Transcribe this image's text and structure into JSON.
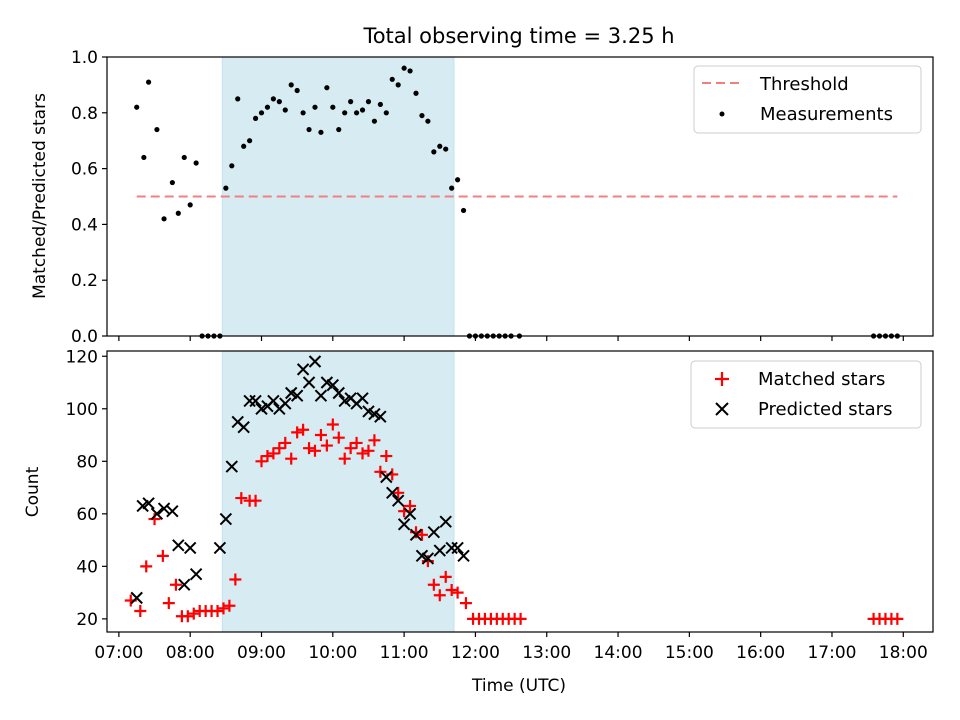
{
  "figure": {
    "title": "Total observing time = 3.25 h"
  },
  "chart_data": [
    {
      "type": "scatter",
      "ylabel": "Matched/Predicted stars",
      "xlim": [
        "06:50",
        "18:25"
      ],
      "ylim": [
        0,
        1.0
      ],
      "yticks": [
        0.0,
        0.2,
        0.4,
        0.6,
        0.8,
        1.0
      ],
      "ytick_labels": [
        "0.0",
        "0.2",
        "0.4",
        "0.6",
        "0.8",
        "1.0"
      ],
      "shaded_span": [
        "08:27",
        "11:42"
      ],
      "legend_position": "top-right",
      "threshold": {
        "name": "Threshold",
        "y": 0.5,
        "x_range": [
          "07:15",
          "17:55"
        ],
        "color": "#f08080"
      },
      "series": [
        {
          "name": "Measurements",
          "color": "#000000",
          "x": [
            "07:15",
            "07:21",
            "07:25",
            "07:32",
            "07:38",
            "07:45",
            "07:50",
            "07:55",
            "08:00",
            "08:05",
            "08:10",
            "08:15",
            "08:20",
            "08:25",
            "08:30",
            "08:35",
            "08:40",
            "08:45",
            "08:50",
            "08:55",
            "09:00",
            "09:05",
            "09:10",
            "09:15",
            "09:20",
            "09:25",
            "09:30",
            "09:35",
            "09:40",
            "09:45",
            "09:50",
            "09:55",
            "10:00",
            "10:05",
            "10:10",
            "10:15",
            "10:20",
            "10:25",
            "10:30",
            "10:35",
            "10:40",
            "10:45",
            "10:50",
            "10:55",
            "11:00",
            "11:05",
            "11:10",
            "11:15",
            "11:20",
            "11:25",
            "11:30",
            "11:35",
            "11:40",
            "11:45",
            "11:50",
            "11:55",
            "12:00",
            "12:05",
            "12:10",
            "12:15",
            "12:20",
            "12:25",
            "12:30",
            "12:37",
            "17:35",
            "17:40",
            "17:45",
            "17:50",
            "17:55"
          ],
          "y": [
            0.82,
            0.64,
            0.91,
            0.74,
            0.42,
            0.55,
            0.44,
            0.64,
            0.47,
            0.62,
            0.0,
            0.0,
            0.0,
            0.0,
            0.53,
            0.61,
            0.85,
            0.68,
            0.7,
            0.78,
            0.8,
            0.82,
            0.85,
            0.84,
            0.81,
            0.9,
            0.88,
            0.8,
            0.74,
            0.82,
            0.73,
            0.89,
            0.82,
            0.74,
            0.8,
            0.84,
            0.8,
            0.81,
            0.84,
            0.77,
            0.83,
            0.8,
            0.92,
            0.9,
            0.96,
            0.95,
            0.87,
            0.79,
            0.77,
            0.66,
            0.68,
            0.67,
            0.53,
            0.56,
            0.45,
            0.0,
            0.0,
            0.0,
            0.0,
            0.0,
            0.0,
            0.0,
            0.0,
            0.0,
            0.0,
            0.0,
            0.0,
            0.0,
            0.0
          ]
        }
      ]
    },
    {
      "type": "scatter",
      "xlabel": "Time (UTC)",
      "ylabel": "Count",
      "xlim": [
        "06:50",
        "18:25"
      ],
      "ylim": [
        15,
        122
      ],
      "xticks": [
        "07:00",
        "08:00",
        "09:00",
        "10:00",
        "11:00",
        "12:00",
        "13:00",
        "14:00",
        "15:00",
        "16:00",
        "17:00",
        "18:00"
      ],
      "yticks": [
        20,
        40,
        60,
        80,
        100,
        120
      ],
      "ytick_labels": [
        "20",
        "40",
        "60",
        "80",
        "100",
        "120"
      ],
      "shaded_span": [
        "08:27",
        "11:42"
      ],
      "legend_position": "top-right",
      "series": [
        {
          "name": "Matched stars",
          "marker": "+",
          "color": "#ff0000",
          "x": [
            "07:10",
            "07:18",
            "07:23",
            "07:30",
            "07:37",
            "07:42",
            "07:48",
            "07:53",
            "07:58",
            "08:03",
            "08:08",
            "08:13",
            "08:18",
            "08:23",
            "08:28",
            "08:33",
            "08:38",
            "08:43",
            "08:50",
            "08:55",
            "09:00",
            "09:05",
            "09:10",
            "09:15",
            "09:20",
            "09:25",
            "09:30",
            "09:35",
            "09:40",
            "09:45",
            "09:50",
            "09:55",
            "10:00",
            "10:05",
            "10:10",
            "10:15",
            "10:20",
            "10:25",
            "10:30",
            "10:35",
            "10:40",
            "10:45",
            "10:50",
            "10:55",
            "11:00",
            "11:05",
            "11:10",
            "11:15",
            "11:20",
            "11:25",
            "11:30",
            "11:35",
            "11:40",
            "11:45",
            "11:52",
            "11:58",
            "12:03",
            "12:08",
            "12:13",
            "12:18",
            "12:23",
            "12:28",
            "12:33",
            "12:38",
            "17:35",
            "17:40",
            "17:45",
            "17:50",
            "17:55"
          ],
          "y": [
            27,
            23,
            40,
            58,
            44,
            26,
            33,
            21,
            21,
            22,
            23,
            23,
            23,
            23,
            24,
            25,
            35,
            66,
            65,
            65,
            80,
            82,
            83,
            85,
            87,
            81,
            91,
            92,
            85,
            84,
            90,
            86,
            94,
            89,
            81,
            85,
            87,
            83,
            84,
            88,
            76,
            82,
            75,
            68,
            61,
            63,
            53,
            52,
            42,
            33,
            29,
            36,
            31,
            30,
            26,
            20,
            20,
            20,
            20,
            20,
            20,
            20,
            20,
            20,
            20,
            20,
            20,
            20,
            20
          ]
        },
        {
          "name": "Predicted stars",
          "marker": "x",
          "color": "#000000",
          "x": [
            "07:15",
            "07:20",
            "07:25",
            "07:32",
            "07:38",
            "07:45",
            "07:50",
            "07:55",
            "08:00",
            "08:05",
            "08:25",
            "08:30",
            "08:35",
            "08:40",
            "08:45",
            "08:50",
            "08:55",
            "09:00",
            "09:05",
            "09:10",
            "09:15",
            "09:20",
            "09:25",
            "09:30",
            "09:35",
            "09:40",
            "09:45",
            "09:50",
            "09:55",
            "10:00",
            "10:05",
            "10:10",
            "10:15",
            "10:20",
            "10:25",
            "10:30",
            "10:35",
            "10:40",
            "10:45",
            "10:50",
            "10:55",
            "11:00",
            "11:05",
            "11:10",
            "11:15",
            "11:20",
            "11:25",
            "11:30",
            "11:35",
            "11:40",
            "11:45",
            "11:50"
          ],
          "y": [
            28,
            63,
            64,
            60,
            62,
            61,
            48,
            33,
            47,
            37,
            47,
            58,
            78,
            95,
            93,
            103,
            103,
            100,
            101,
            103,
            100,
            102,
            106,
            105,
            115,
            110,
            118,
            105,
            110,
            109,
            106,
            103,
            104,
            102,
            104,
            99,
            98,
            97,
            74,
            68,
            65,
            56,
            60,
            52,
            44,
            43,
            53,
            46,
            57,
            47,
            47,
            44
          ]
        }
      ]
    }
  ]
}
